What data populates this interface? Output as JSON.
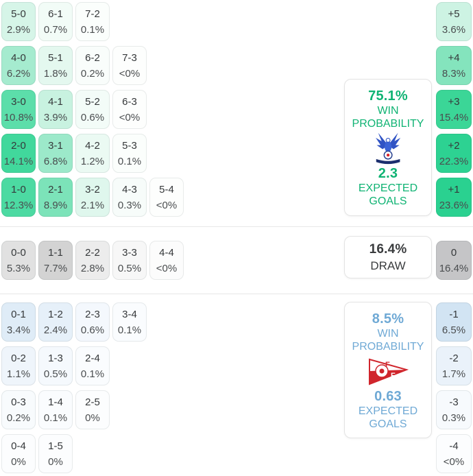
{
  "accents": {
    "home_accent": "#0fb373",
    "away_accent": "#6fa9d5",
    "draw_text": "#3a3c3e",
    "score_text": "#35383a",
    "pct_text": "#4a4d4f",
    "divider": "#e7e7e7",
    "panel_border": "#e3e3e3"
  },
  "chart_data": {
    "type": "heatmap",
    "title": "Correct score probability matrix with win/draw probabilities and expected goals",
    "home": {
      "win_probability_pct": 75.1,
      "expected_goals": 2.3,
      "score_probabilities": [
        {
          "score": "5-0",
          "pct": "2.9%"
        },
        {
          "score": "6-1",
          "pct": "0.7%"
        },
        {
          "score": "7-2",
          "pct": "0.1%"
        },
        {
          "score": "4-0",
          "pct": "6.2%"
        },
        {
          "score": "5-1",
          "pct": "1.8%"
        },
        {
          "score": "6-2",
          "pct": "0.2%"
        },
        {
          "score": "7-3",
          "pct": "<0%"
        },
        {
          "score": "3-0",
          "pct": "10.8%"
        },
        {
          "score": "4-1",
          "pct": "3.9%"
        },
        {
          "score": "5-2",
          "pct": "0.6%"
        },
        {
          "score": "6-3",
          "pct": "<0%"
        },
        {
          "score": "2-0",
          "pct": "14.1%"
        },
        {
          "score": "3-1",
          "pct": "6.8%"
        },
        {
          "score": "4-2",
          "pct": "1.2%"
        },
        {
          "score": "5-3",
          "pct": "0.1%"
        },
        {
          "score": "1-0",
          "pct": "12.3%"
        },
        {
          "score": "2-1",
          "pct": "8.9%"
        },
        {
          "score": "3-2",
          "pct": "2.1%"
        },
        {
          "score": "4-3",
          "pct": "0.3%"
        },
        {
          "score": "5-4",
          "pct": "<0%"
        }
      ],
      "margin_probabilities": [
        {
          "margin": "+5",
          "pct": "3.6%"
        },
        {
          "margin": "+4",
          "pct": "8.3%"
        },
        {
          "margin": "+3",
          "pct": "15.4%"
        },
        {
          "margin": "+2",
          "pct": "22.3%"
        },
        {
          "margin": "+1",
          "pct": "23.6%"
        }
      ]
    },
    "draw": {
      "probability_pct": 16.4,
      "score_probabilities": [
        {
          "score": "0-0",
          "pct": "5.3%"
        },
        {
          "score": "1-1",
          "pct": "7.7%"
        },
        {
          "score": "2-2",
          "pct": "2.8%"
        },
        {
          "score": "3-3",
          "pct": "0.5%"
        },
        {
          "score": "4-4",
          "pct": "<0%"
        }
      ],
      "margin_probabilities": [
        {
          "margin": "0",
          "pct": "16.4%"
        }
      ]
    },
    "away": {
      "win_probability_pct": 8.5,
      "expected_goals": 0.63,
      "score_probabilities": [
        {
          "score": "0-1",
          "pct": "3.4%"
        },
        {
          "score": "1-2",
          "pct": "2.4%"
        },
        {
          "score": "2-3",
          "pct": "0.6%"
        },
        {
          "score": "3-4",
          "pct": "0.1%"
        },
        {
          "score": "0-2",
          "pct": "1.1%"
        },
        {
          "score": "1-3",
          "pct": "0.5%"
        },
        {
          "score": "2-4",
          "pct": "0.1%"
        },
        {
          "score": "0-3",
          "pct": "0.2%"
        },
        {
          "score": "1-4",
          "pct": "0.1%"
        },
        {
          "score": "2-5",
          "pct": "0%"
        },
        {
          "score": "0-4",
          "pct": "0%"
        },
        {
          "score": "1-5",
          "pct": "0%"
        }
      ],
      "margin_probabilities": [
        {
          "margin": "-1",
          "pct": "6.5%"
        },
        {
          "margin": "-2",
          "pct": "1.7%"
        },
        {
          "margin": "-3",
          "pct": "0.3%"
        },
        {
          "margin": "-4",
          "pct": "<0%"
        }
      ]
    }
  },
  "home": {
    "panel": {
      "probability": "75.1%",
      "win_line1": "WIN",
      "win_line2": "PROBABILITY",
      "goals": "2.3",
      "goals_line1": "EXPECTED",
      "goals_line2": "GOALS",
      "logo": "crystal-palace-crest"
    },
    "score_rows": [
      {
        "cells": [
          {
            "s": "5-0",
            "p": "2.9%",
            "bg": "#d6f5e8"
          },
          {
            "s": "6-1",
            "p": "0.7%",
            "bg": "#f2fcf7"
          },
          {
            "s": "7-2",
            "p": "0.1%",
            "bg": "#fbfefc"
          }
        ]
      },
      {
        "cells": [
          {
            "s": "4-0",
            "p": "6.2%",
            "bg": "#a5ebcf"
          },
          {
            "s": "5-1",
            "p": "1.8%",
            "bg": "#e4f8ef"
          },
          {
            "s": "6-2",
            "p": "0.2%",
            "bg": "#f9fdfb"
          },
          {
            "s": "7-3",
            "p": "<0%",
            "bg": "#fdfefd"
          }
        ]
      },
      {
        "cells": [
          {
            "s": "3-0",
            "p": "10.8%",
            "bg": "#5cdeaa"
          },
          {
            "s": "4-1",
            "p": "3.9%",
            "bg": "#c8f2e0"
          },
          {
            "s": "5-2",
            "p": "0.6%",
            "bg": "#f3fcf8"
          },
          {
            "s": "6-3",
            "p": "<0%",
            "bg": "#fdfefd"
          }
        ]
      },
      {
        "cells": [
          {
            "s": "2-0",
            "p": "14.1%",
            "bg": "#41d89c"
          },
          {
            "s": "3-1",
            "p": "6.8%",
            "bg": "#9ce9ca"
          },
          {
            "s": "4-2",
            "p": "1.2%",
            "bg": "#ebfaf3"
          },
          {
            "s": "5-3",
            "p": "0.1%",
            "bg": "#fbfefc"
          }
        ]
      },
      {
        "cells": [
          {
            "s": "1-0",
            "p": "12.3%",
            "bg": "#4cdaa2"
          },
          {
            "s": "2-1",
            "p": "8.9%",
            "bg": "#7ce3b9"
          },
          {
            "s": "3-2",
            "p": "2.1%",
            "bg": "#dff7ed"
          },
          {
            "s": "4-3",
            "p": "0.3%",
            "bg": "#f7fcfa"
          },
          {
            "s": "5-4",
            "p": "<0%",
            "bg": "#fdfefd"
          }
        ]
      }
    ],
    "margin_cells": [
      {
        "s": "+5",
        "p": "3.6%",
        "bg": "#cdf3e3"
      },
      {
        "s": "+4",
        "p": "8.3%",
        "bg": "#84e4bd"
      },
      {
        "s": "+3",
        "p": "15.4%",
        "bg": "#3bd697"
      },
      {
        "s": "+2",
        "p": "22.3%",
        "bg": "#2dd292"
      },
      {
        "s": "+1",
        "p": "23.6%",
        "bg": "#2ad190"
      }
    ]
  },
  "draw": {
    "panel": {
      "probability": "16.4%",
      "label": "DRAW"
    },
    "score_cells": [
      {
        "s": "0-0",
        "p": "5.3%",
        "bg": "#e1e1e1"
      },
      {
        "s": "1-1",
        "p": "7.7%",
        "bg": "#d3d3d3"
      },
      {
        "s": "2-2",
        "p": "2.8%",
        "bg": "#ececec"
      },
      {
        "s": "3-3",
        "p": "0.5%",
        "bg": "#f7f7f7"
      },
      {
        "s": "4-4",
        "p": "<0%",
        "bg": "#fcfcfc"
      }
    ],
    "margin_cell": {
      "s": "0",
      "p": "16.4%",
      "bg": "#c5c5c7"
    }
  },
  "away": {
    "panel": {
      "probability": "8.5%",
      "win_line1": "WIN",
      "win_line2": "PROBABILITY",
      "goals": "0.63",
      "goals_line1": "EXPECTED",
      "goals_line2": "GOALS",
      "logo": "fredrikstad-crest"
    },
    "score_rows": [
      {
        "cells": [
          {
            "s": "0-1",
            "p": "3.4%",
            "bg": "#dfecf7"
          },
          {
            "s": "1-2",
            "p": "2.4%",
            "bg": "#e6f0f9"
          },
          {
            "s": "2-3",
            "p": "0.6%",
            "bg": "#f4f8fd"
          },
          {
            "s": "3-4",
            "p": "0.1%",
            "bg": "#fafcfe"
          }
        ]
      },
      {
        "cells": [
          {
            "s": "0-2",
            "p": "1.1%",
            "bg": "#eff5fb"
          },
          {
            "s": "1-3",
            "p": "0.5%",
            "bg": "#f5f9fd"
          },
          {
            "s": "2-4",
            "p": "0.1%",
            "bg": "#fafcfe"
          }
        ]
      },
      {
        "cells": [
          {
            "s": "0-3",
            "p": "0.2%",
            "bg": "#f8fbfd"
          },
          {
            "s": "1-4",
            "p": "0.1%",
            "bg": "#fafcfe"
          },
          {
            "s": "2-5",
            "p": "0%",
            "bg": "#fcfdfe"
          }
        ]
      },
      {
        "cells": [
          {
            "s": "0-4",
            "p": "0%",
            "bg": "#fcfdfe"
          },
          {
            "s": "1-5",
            "p": "0%",
            "bg": "#fcfdfe"
          }
        ]
      }
    ],
    "margin_cells": [
      {
        "s": "-1",
        "p": "6.5%",
        "bg": "#d2e4f3"
      },
      {
        "s": "-2",
        "p": "1.7%",
        "bg": "#eaf2fa"
      },
      {
        "s": "-3",
        "p": "0.3%",
        "bg": "#f7fafd"
      },
      {
        "s": "-4",
        "p": "<0%",
        "bg": "#fcfdfe"
      }
    ]
  }
}
